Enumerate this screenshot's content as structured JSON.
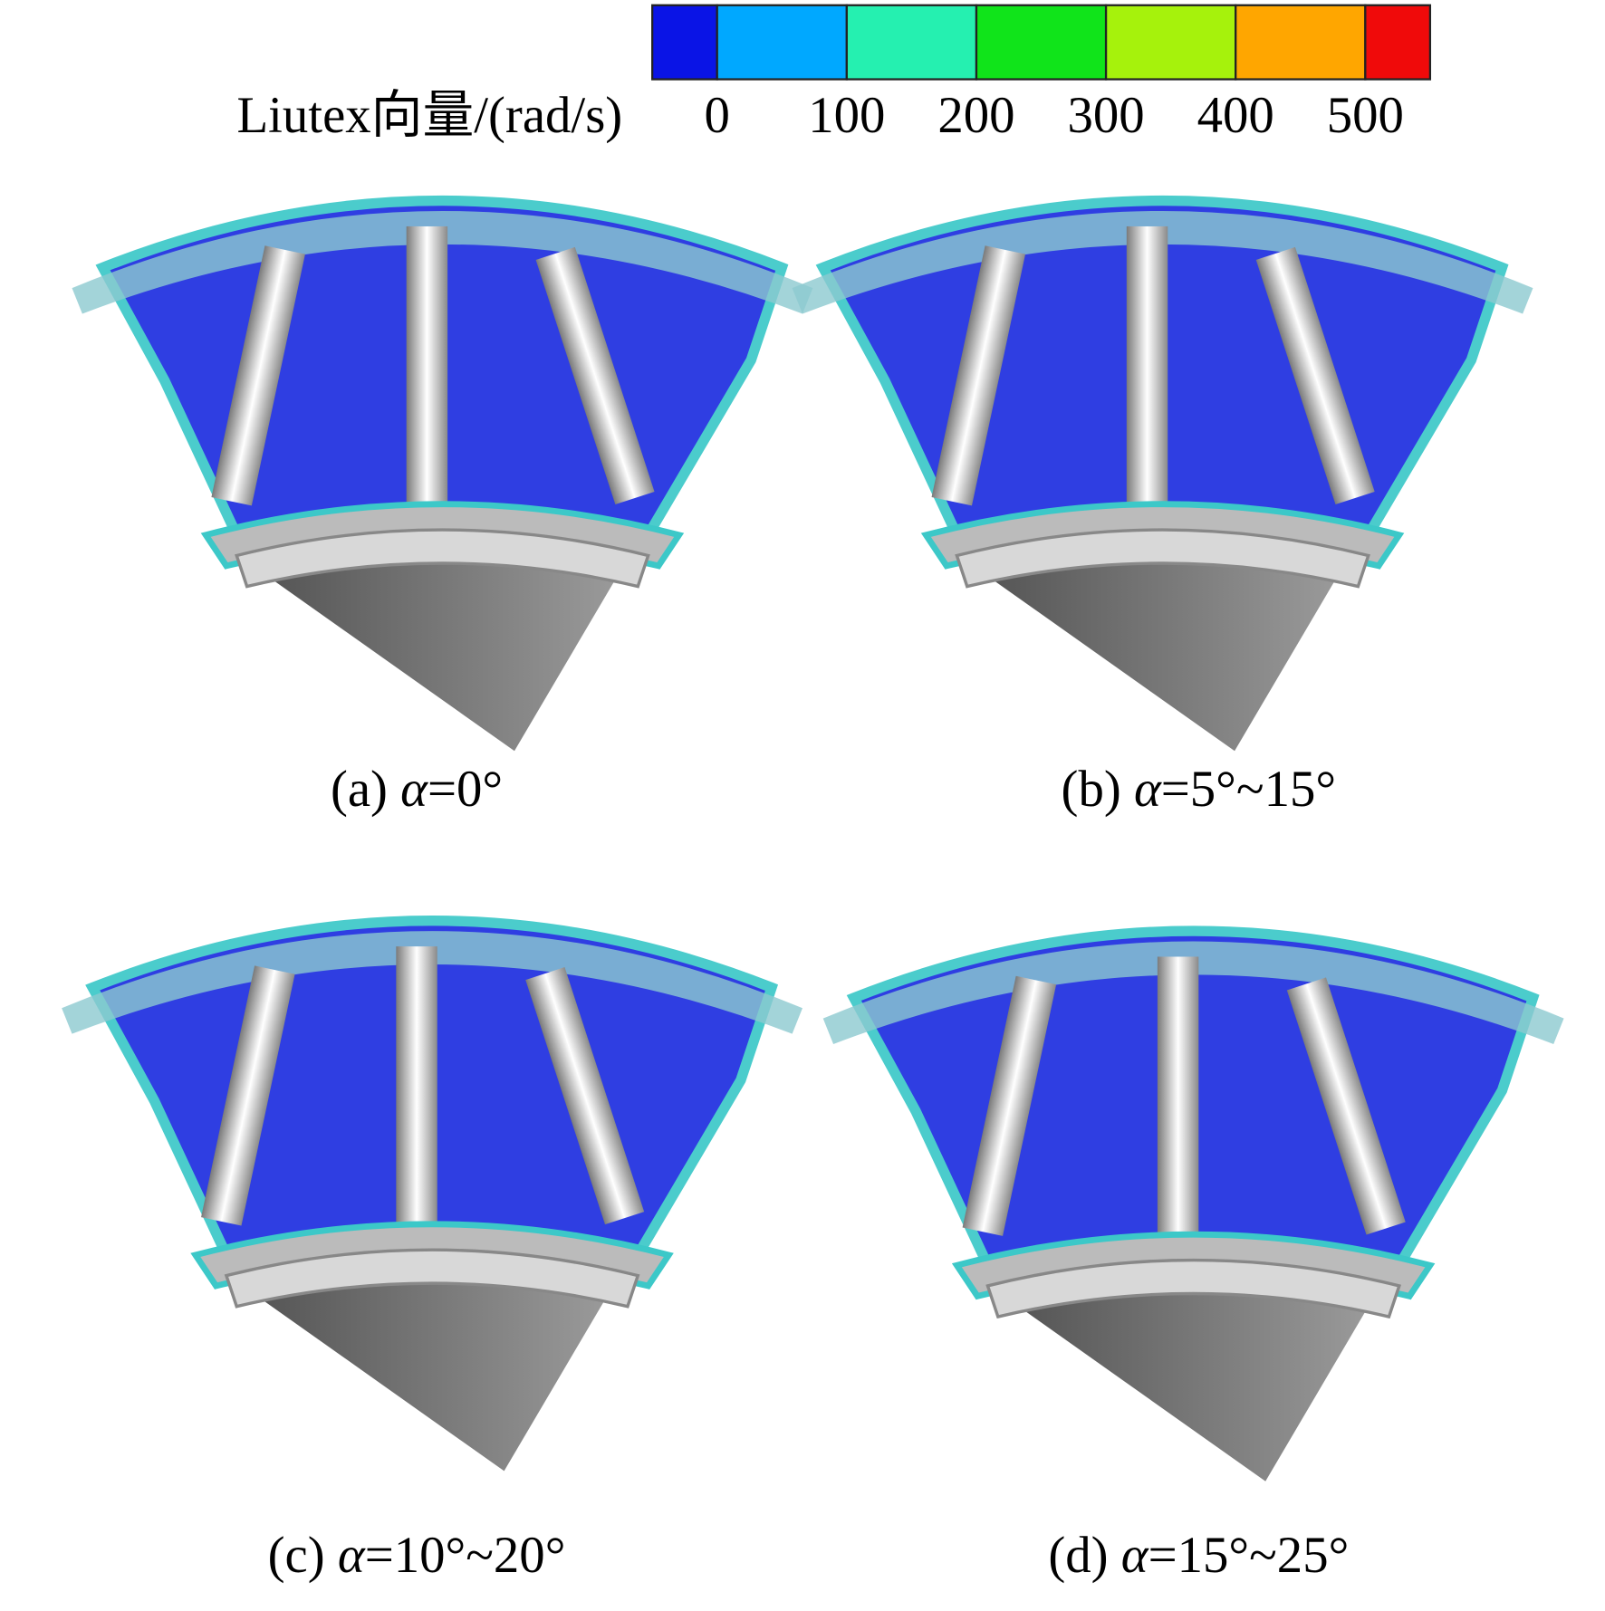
{
  "colorbar": {
    "title": "Liutex向量/(rad/s)",
    "colors": [
      "#0a14e6",
      "#00a8ff",
      "#25f0b0",
      "#10e41a",
      "#a6f20c",
      "#ffa600",
      "#f00a0a"
    ],
    "ticks": [
      0,
      100,
      200,
      300,
      400,
      500
    ]
  },
  "panels": [
    {
      "label": "(a)",
      "symbol": "α",
      "value": "=0°"
    },
    {
      "label": "(b)",
      "symbol": "α",
      "value": "=5°~15°"
    },
    {
      "label": "(c)",
      "symbol": "α",
      "value": "=10°~20°"
    },
    {
      "label": "(d)",
      "symbol": "α",
      "value": "=15°~25°"
    }
  ]
}
